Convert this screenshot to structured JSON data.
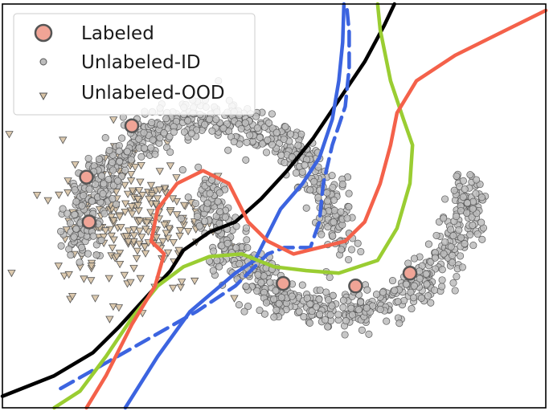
{
  "chart_data": {
    "type": "scatter",
    "title": "",
    "xlabel": "",
    "ylabel": "",
    "xlim": [
      -1.6,
      2.6
    ],
    "ylim": [
      -1.25,
      1.9
    ],
    "grid": false,
    "legend_position": "top-left",
    "legend": [
      {
        "label": "Labeled",
        "marker": "circle-large",
        "color": "#f0a496"
      },
      {
        "label": "Unlabeled-ID",
        "marker": "circle-small",
        "color": "#bdbdbd"
      },
      {
        "label": "Unlabeled-OOD",
        "marker": "triangle-down",
        "color": "#d8c3a5"
      }
    ],
    "series": [
      {
        "name": "Labeled",
        "kind": "points",
        "color": "#f0a496",
        "points": [
          [
            -0.95,
            0.55
          ],
          [
            -0.6,
            0.95
          ],
          [
            -0.93,
            0.2
          ],
          [
            0.57,
            -0.28
          ],
          [
            1.13,
            -0.3
          ],
          [
            1.55,
            -0.2
          ]
        ]
      },
      {
        "name": "Unlabeled-ID",
        "kind": "moons",
        "color": "#bdbdbd",
        "upper_moon": {
          "center": [
            0.0,
            0.0
          ],
          "radius": 1.0,
          "noise": 0.08,
          "count": 650
        },
        "lower_moon": {
          "center": [
            1.0,
            0.5
          ],
          "radius": 1.0,
          "noise": 0.08,
          "count": 650
        }
      },
      {
        "name": "Unlabeled-OOD",
        "kind": "cluster",
        "color": "#d8c3a5",
        "center": [
          -0.6,
          0.25
        ],
        "spread": [
          0.28,
          0.3
        ],
        "count": 260
      }
    ],
    "boundaries": [
      {
        "color": "#000000",
        "style": "solid",
        "points": [
          [
            -1.6,
            -1.16
          ],
          [
            -1.2,
            -1.0
          ],
          [
            -0.9,
            -0.82
          ],
          [
            -0.7,
            -0.62
          ],
          [
            -0.5,
            -0.4
          ],
          [
            -0.3,
            -0.18
          ],
          [
            -0.2,
            -0.02
          ],
          [
            0.0,
            0.12
          ],
          [
            0.2,
            0.2
          ],
          [
            0.4,
            0.38
          ],
          [
            0.6,
            0.6
          ],
          [
            0.8,
            0.85
          ],
          [
            1.0,
            1.15
          ],
          [
            1.2,
            1.45
          ],
          [
            1.35,
            1.73
          ],
          [
            1.43,
            1.9
          ]
        ]
      },
      {
        "color": "#3c64e0",
        "style": "solid",
        "points": [
          [
            -0.65,
            -1.25
          ],
          [
            -0.4,
            -0.85
          ],
          [
            -0.15,
            -0.5
          ],
          [
            0.2,
            -0.2
          ],
          [
            0.35,
            -0.1
          ],
          [
            0.45,
            0.1
          ],
          [
            0.55,
            0.3
          ],
          [
            0.72,
            0.5
          ],
          [
            0.85,
            0.7
          ],
          [
            0.95,
            1.0
          ],
          [
            1.0,
            1.3
          ],
          [
            1.03,
            1.6
          ],
          [
            1.04,
            1.9
          ]
        ]
      },
      {
        "color": "#3c64e0",
        "style": "dashed",
        "points": [
          [
            -1.15,
            -1.1
          ],
          [
            -0.8,
            -0.9
          ],
          [
            -0.45,
            -0.7
          ],
          [
            -0.1,
            -0.5
          ],
          [
            0.2,
            -0.3
          ],
          [
            0.45,
            -0.05
          ],
          [
            0.58,
            0.0
          ],
          [
            0.78,
            0.0
          ],
          [
            0.85,
            0.2
          ],
          [
            0.88,
            0.5
          ],
          [
            0.95,
            0.8
          ],
          [
            1.05,
            1.1
          ],
          [
            1.08,
            1.4
          ],
          [
            1.08,
            1.68
          ],
          [
            1.06,
            1.9
          ]
        ]
      },
      {
        "color": "#9acd32",
        "style": "solid",
        "points": [
          [
            -1.2,
            -1.25
          ],
          [
            -1.0,
            -1.12
          ],
          [
            -0.8,
            -0.85
          ],
          [
            -0.6,
            -0.55
          ],
          [
            -0.4,
            -0.3
          ],
          [
            -0.2,
            -0.15
          ],
          [
            0.0,
            -0.07
          ],
          [
            0.25,
            -0.05
          ],
          [
            0.5,
            -0.15
          ],
          [
            0.75,
            -0.18
          ],
          [
            1.0,
            -0.2
          ],
          [
            1.3,
            -0.1
          ],
          [
            1.45,
            0.15
          ],
          [
            1.55,
            0.5
          ],
          [
            1.57,
            0.8
          ],
          [
            1.5,
            1.0
          ],
          [
            1.4,
            1.3
          ],
          [
            1.32,
            1.7
          ],
          [
            1.3,
            1.9
          ]
        ]
      },
      {
        "color": "#f4614a",
        "style": "solid",
        "points": [
          [
            -0.95,
            -1.25
          ],
          [
            -0.8,
            -1.0
          ],
          [
            -0.6,
            -0.6
          ],
          [
            -0.42,
            -0.3
          ],
          [
            -0.35,
            -0.05
          ],
          [
            -0.45,
            0.05
          ],
          [
            -0.4,
            0.3
          ],
          [
            -0.25,
            0.5
          ],
          [
            -0.05,
            0.6
          ],
          [
            0.15,
            0.5
          ],
          [
            0.3,
            0.2
          ],
          [
            0.45,
            0.05
          ],
          [
            0.65,
            -0.05
          ],
          [
            0.85,
            0.0
          ],
          [
            1.05,
            0.05
          ],
          [
            1.2,
            0.2
          ],
          [
            1.32,
            0.5
          ],
          [
            1.4,
            0.8
          ],
          [
            1.45,
            1.05
          ],
          [
            1.6,
            1.3
          ],
          [
            1.9,
            1.5
          ],
          [
            2.2,
            1.65
          ],
          [
            2.6,
            1.85
          ]
        ]
      }
    ]
  }
}
